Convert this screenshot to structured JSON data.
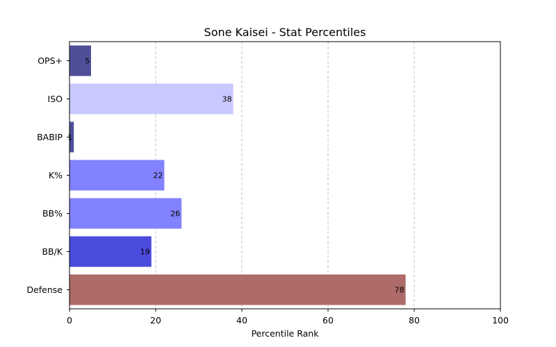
{
  "chart_data": {
    "type": "bar",
    "orientation": "horizontal",
    "title": "Sone Kaisei - Stat Percentiles",
    "xlabel": "Percentile Rank",
    "ylabel": "",
    "xlim": [
      0,
      100
    ],
    "xticks": [
      0,
      20,
      40,
      60,
      80,
      100
    ],
    "grid": "x-axis dashed",
    "categories": [
      "OPS+",
      "ISO",
      "BABIP",
      "K%",
      "BB%",
      "BB/K",
      "Defense"
    ],
    "values": [
      5,
      38,
      1,
      22,
      26,
      19,
      78
    ],
    "colors": [
      "#4f4f99",
      "#cac9ff",
      "#4f4f99",
      "#8282ff",
      "#8282ff",
      "#4b4bdd",
      "#ad6b69"
    ]
  }
}
